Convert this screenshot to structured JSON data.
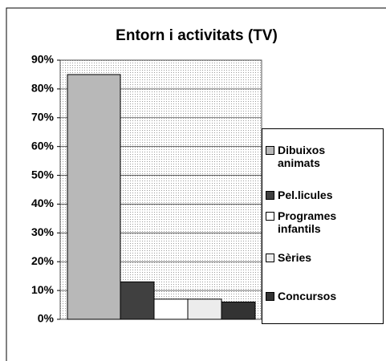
{
  "chart_data": {
    "type": "bar",
    "title": "Entorn i activitats (TV)",
    "series": [
      {
        "name": "Dibuixos animats",
        "color": "#b8b8b8",
        "values": [
          85
        ]
      },
      {
        "name": "Pel.licules",
        "color": "#404040",
        "values": [
          13
        ]
      },
      {
        "name": "Programes infantils",
        "color": "#ffffff",
        "values": [
          7
        ]
      },
      {
        "name": "Sèries",
        "color": "#ececec",
        "values": [
          7
        ]
      },
      {
        "name": "Concursos",
        "color": "#333333",
        "values": [
          6
        ]
      }
    ],
    "ylim": [
      0,
      90
    ],
    "yticks": [
      {
        "value": 0,
        "label": "0%"
      },
      {
        "value": 10,
        "label": "10%"
      },
      {
        "value": 20,
        "label": "20%"
      },
      {
        "value": 30,
        "label": "30%"
      },
      {
        "value": 40,
        "label": "40%"
      },
      {
        "value": 50,
        "label": "50%"
      },
      {
        "value": 60,
        "label": "60%"
      },
      {
        "value": 70,
        "label": "70%"
      },
      {
        "value": 80,
        "label": "80%"
      },
      {
        "value": 90,
        "label": "90%"
      }
    ],
    "grid": true,
    "legend": "right"
  }
}
